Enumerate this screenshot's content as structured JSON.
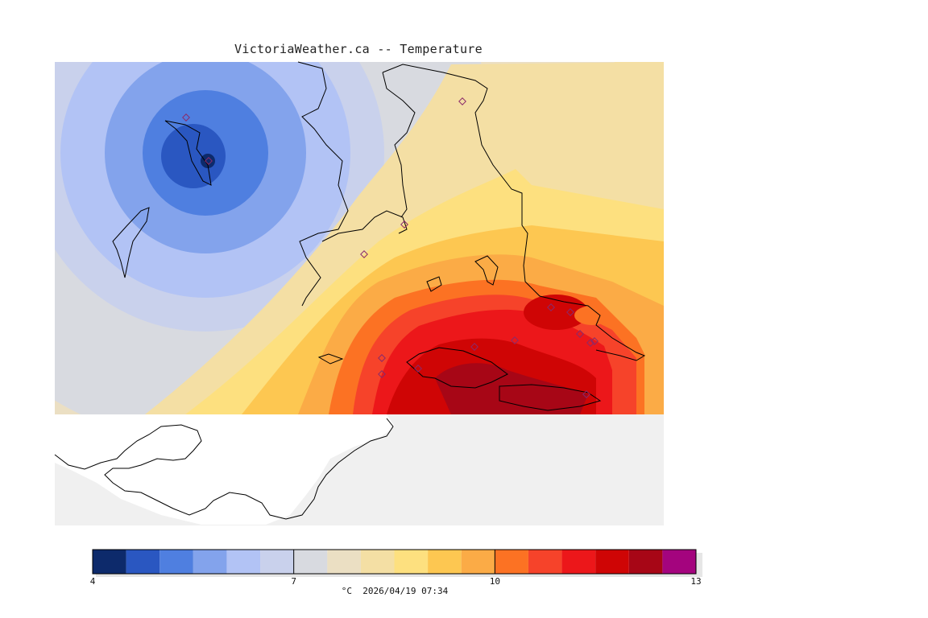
{
  "map": {
    "title": "VictoriaWeather.ca -- Temperature",
    "parameter": "Temperature"
  },
  "legend": {
    "unit": "°C",
    "timestamp": "2026/04/19 07:34",
    "ticks": [
      "4",
      "7",
      "10",
      "13"
    ],
    "bins": [
      {
        "from": 4.0,
        "to": 4.5,
        "color": "#0d2a6b"
      },
      {
        "from": 4.5,
        "to": 5.0,
        "color": "#2a57c1"
      },
      {
        "from": 5.0,
        "to": 5.5,
        "color": "#4f7fe0"
      },
      {
        "from": 5.5,
        "to": 6.0,
        "color": "#83a3ec"
      },
      {
        "from": 6.0,
        "to": 6.5,
        "color": "#b2c3f5"
      },
      {
        "from": 6.5,
        "to": 7.0,
        "color": "#c9d1ec"
      },
      {
        "from": 7.0,
        "to": 7.5,
        "color": "#d8dae0"
      },
      {
        "from": 7.5,
        "to": 8.0,
        "color": "#ebdfc3"
      },
      {
        "from": 8.0,
        "to": 8.5,
        "color": "#f4dfa4"
      },
      {
        "from": 8.5,
        "to": 9.0,
        "color": "#fde07f"
      },
      {
        "from": 9.0,
        "to": 9.5,
        "color": "#fdc751"
      },
      {
        "from": 9.5,
        "to": 10.0,
        "color": "#fbab46"
      },
      {
        "from": 10.0,
        "to": 10.5,
        "color": "#fc7223"
      },
      {
        "from": 10.5,
        "to": 11.0,
        "color": "#f6432a"
      },
      {
        "from": 11.0,
        "to": 11.5,
        "color": "#ec171a"
      },
      {
        "from": 11.5,
        "to": 12.0,
        "color": "#cf0505"
      },
      {
        "from": 12.0,
        "to": 12.5,
        "color": "#a70616"
      },
      {
        "from": 12.5,
        "to": 13.0,
        "color": "#a4047e"
      }
    ]
  },
  "colors": {
    "water_background": "#f0f0f0",
    "land_outside": "#ffffff",
    "coastline": "#000000",
    "station_marker": "#8a2a6a"
  },
  "stations_count": 16
}
